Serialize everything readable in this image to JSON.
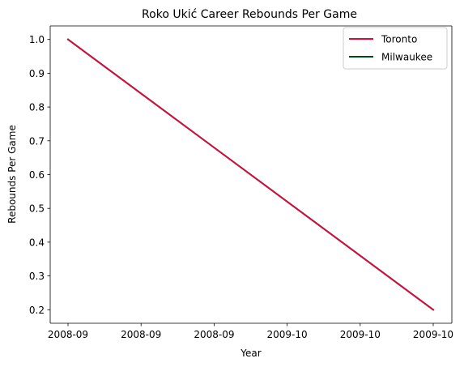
{
  "chart_data": {
    "type": "line",
    "title": "Roko Ukić Career Rebounds Per Game",
    "xlabel": "Year",
    "ylabel": "Rebounds Per Game",
    "x_tick_labels": [
      "2008-09",
      "2008-09",
      "2008-09",
      "2009-10",
      "2009-10",
      "2009-10"
    ],
    "ylim": [
      0.16,
      1.04
    ],
    "y_ticks": [
      0.2,
      0.3,
      0.4,
      0.5,
      0.6,
      0.7,
      0.8,
      0.9,
      1.0
    ],
    "y_tick_labels": [
      "0.2",
      "0.3",
      "0.4",
      "0.5",
      "0.6",
      "0.7",
      "0.8",
      "0.9",
      "1.0"
    ],
    "x": [
      "2008-09",
      "2009-10"
    ],
    "series": [
      {
        "name": "Toronto",
        "color": "#ce1141",
        "values": [
          1.0,
          0.2
        ]
      },
      {
        "name": "Milwaukee",
        "color": "#00471b",
        "values": [
          1.0,
          0.2
        ]
      }
    ],
    "grid": false,
    "legend_position": "top-right"
  }
}
